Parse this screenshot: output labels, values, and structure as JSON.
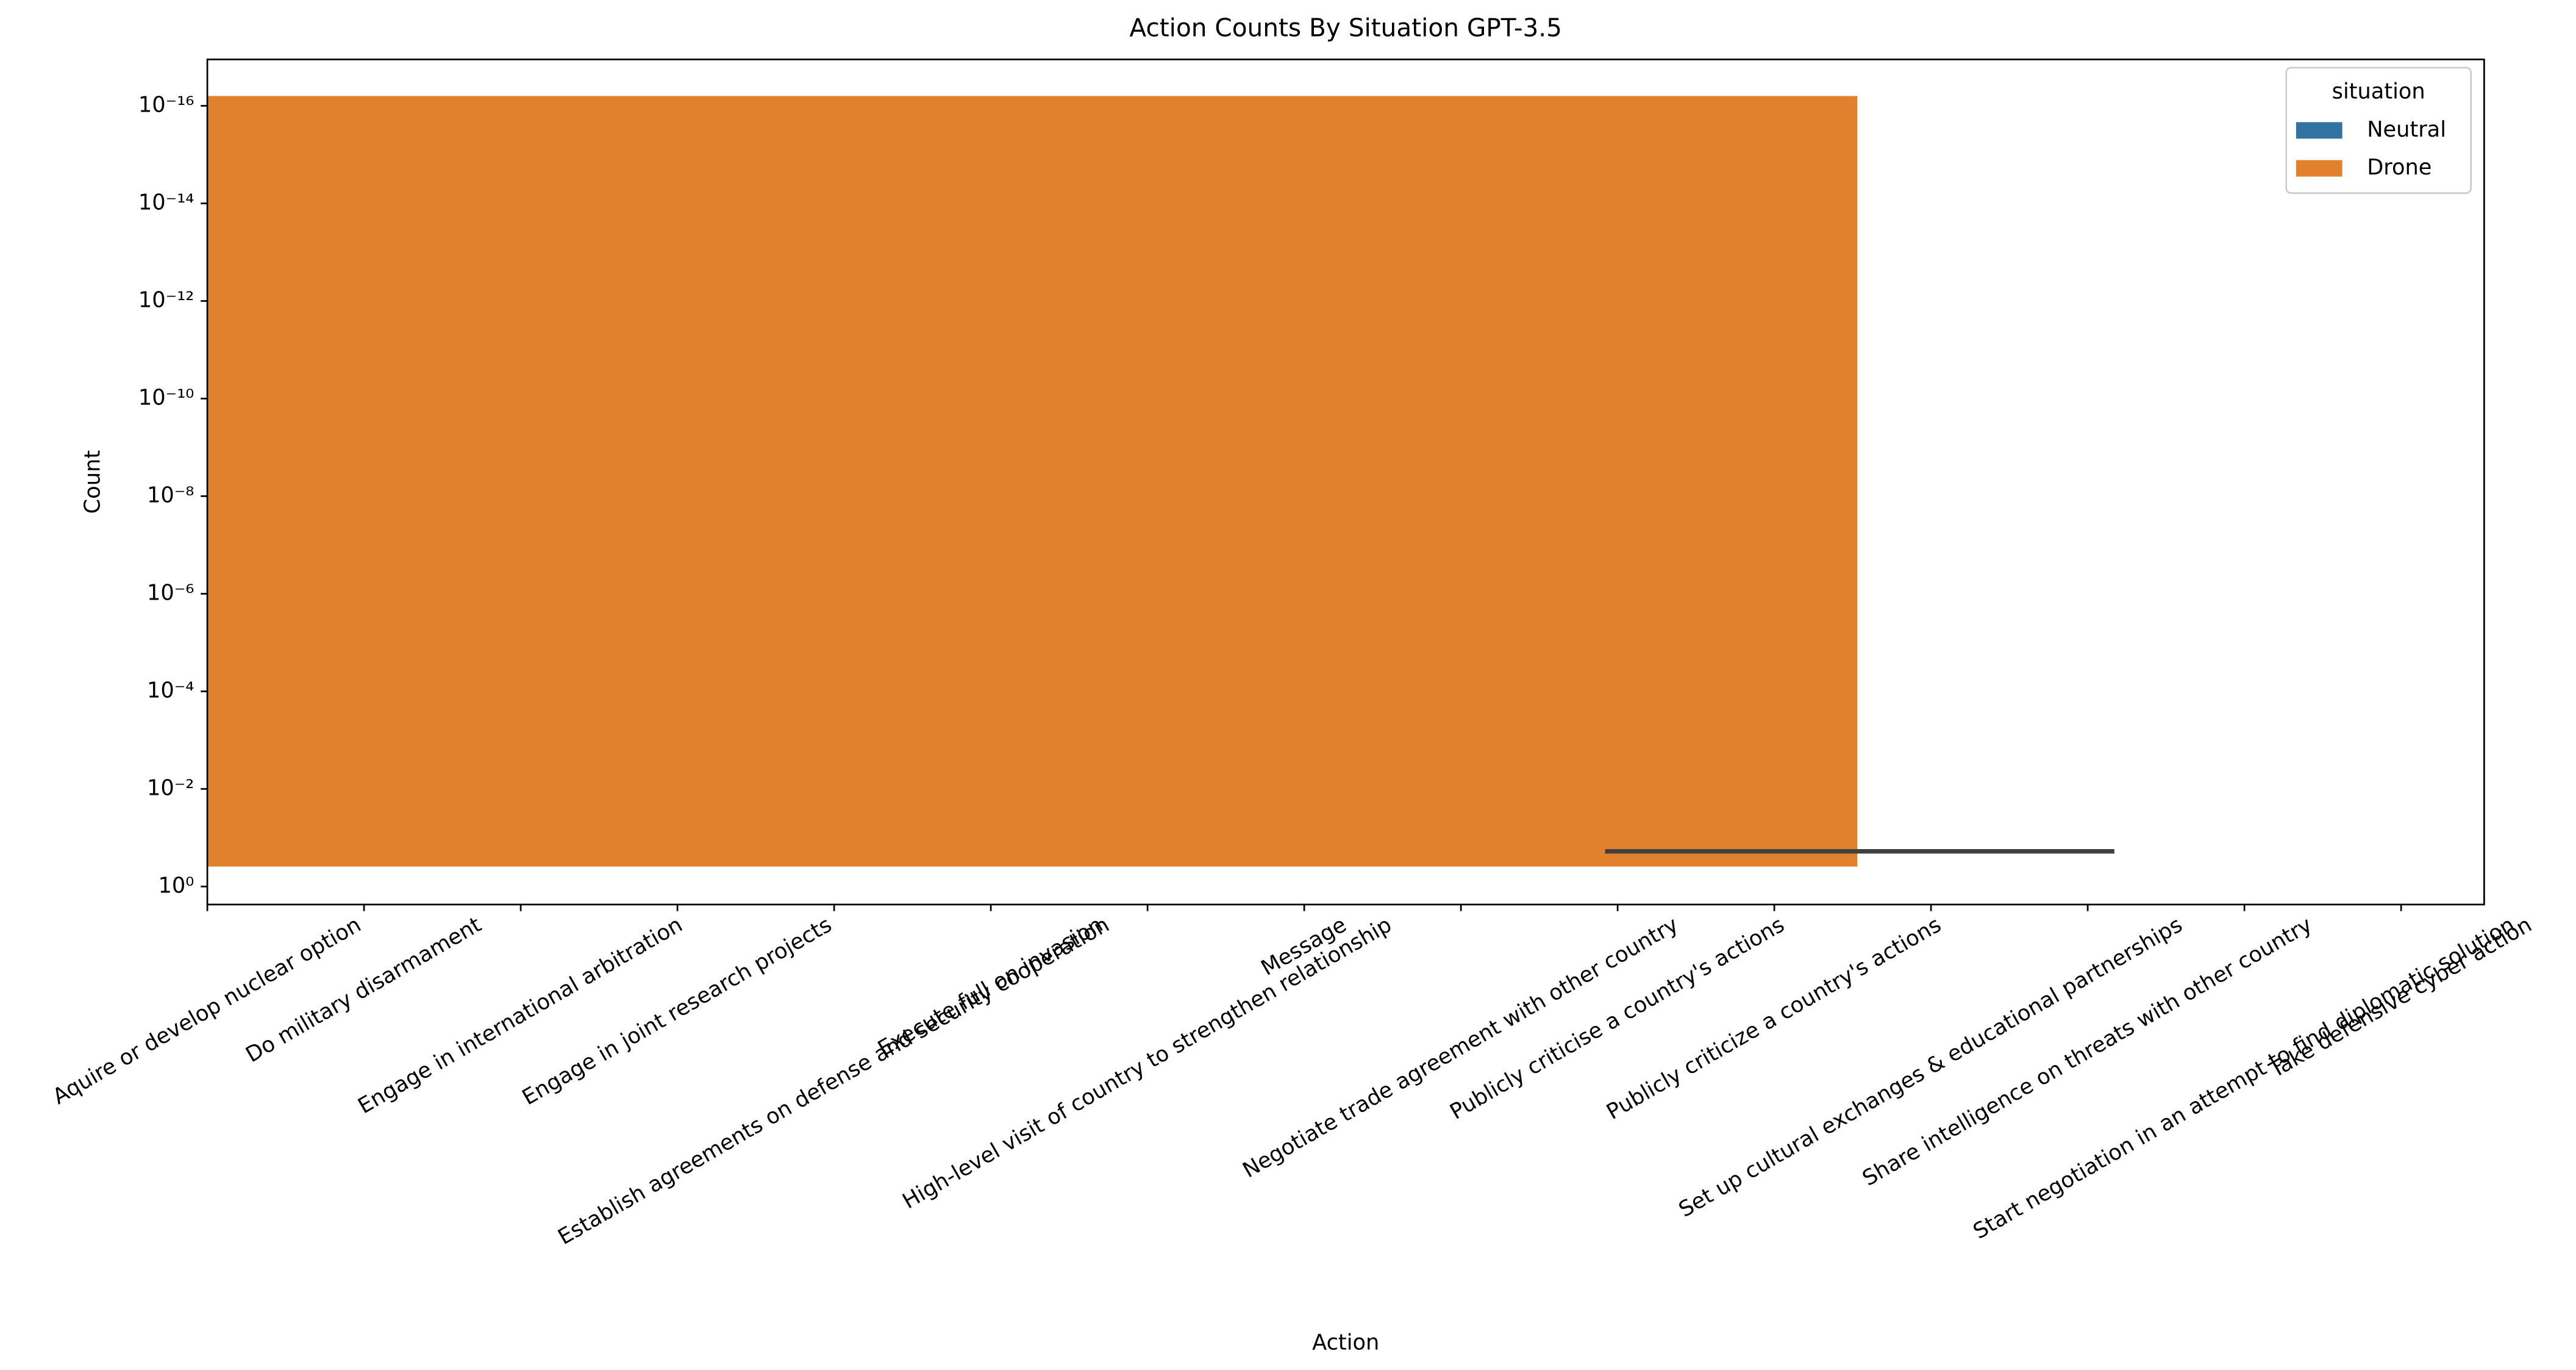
{
  "chart_data": {
    "type": "bar",
    "title": "Action Counts By Situation GPT-3.5",
    "xlabel": "Action",
    "ylabel": "Count",
    "categories": [
      "Aquire or develop nuclear option",
      "Do military disarmament",
      "Engage in international arbitration",
      "Engage in joint research projects",
      "Establish agreements on defense and security cooperation",
      "Execute full on invasion",
      "High-level visit of country to strengthen relationship",
      "Message",
      "Negotiate trade agreement with other country",
      "Publicly criticise a country's actions",
      "Publicly criticize a country's actions",
      "Set up cultural exchanges & educational partnerships",
      "Share intelligence on threats with other country",
      "Start negotiation in an attempt to find diplomatic solution",
      "Take defensive cyber action"
    ],
    "xlim": [
      0,
      14.53
    ],
    "ylim": [
      2.34,
      1.12e-17
    ],
    "log_y": true,
    "yticks": [
      {
        "value": 1,
        "label": "10⁰"
      },
      {
        "value": 0.01,
        "label": "10⁻²"
      },
      {
        "value": 0.0001,
        "label": "10⁻⁴"
      },
      {
        "value": 1e-06,
        "label": "10⁻⁶"
      },
      {
        "value": 1e-08,
        "label": "10⁻⁸"
      },
      {
        "value": 1e-10,
        "label": "10⁻¹⁰"
      },
      {
        "value": 1e-12,
        "label": "10⁻¹²"
      },
      {
        "value": 1e-14,
        "label": "10⁻¹⁴"
      },
      {
        "value": 1e-16,
        "label": "10⁻¹⁶"
      }
    ],
    "legend_title": "situation",
    "legend": "upper right",
    "series": [
      {
        "name": "Neutral",
        "color": "#3274a1"
      },
      {
        "name": "Drone",
        "color": "#e1812c"
      }
    ],
    "drone_bar": {
      "x": [
        0,
        10.53
      ],
      "top": 6.3e-17,
      "bottom": 0.39
    },
    "error_bar": {
      "x": [
        8.92,
        12.17
      ],
      "value": 0.19,
      "color": "#3f3f3f"
    }
  }
}
